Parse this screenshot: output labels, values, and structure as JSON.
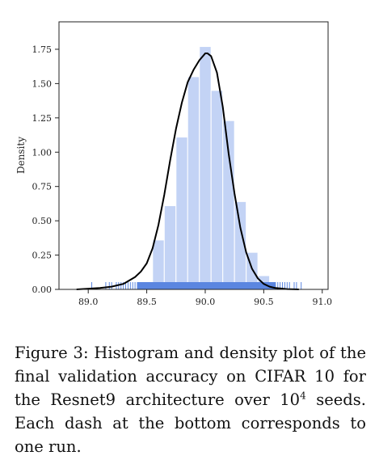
{
  "chart_data": {
    "type": "histogram",
    "ylabel": "Density",
    "xlabel": "",
    "xlim": [
      88.75,
      91.05
    ],
    "ylim": [
      0,
      1.95
    ],
    "x_ticks": [
      89.0,
      89.5,
      90.0,
      90.5,
      91.0
    ],
    "x_tick_labels": [
      "89.0",
      "89.5",
      "90.0",
      "90.5",
      "91.0"
    ],
    "y_ticks": [
      0.0,
      0.25,
      0.5,
      0.75,
      1.0,
      1.25,
      1.5,
      1.75
    ],
    "y_tick_labels": [
      "0.00",
      "0.25",
      "0.50",
      "0.75",
      "1.00",
      "1.25",
      "1.50",
      "1.75"
    ],
    "bins": [
      {
        "x0": 89.45,
        "x1": 89.55,
        "density": 0.05
      },
      {
        "x0": 89.55,
        "x1": 89.65,
        "density": 0.36
      },
      {
        "x0": 89.65,
        "x1": 89.75,
        "density": 0.61
      },
      {
        "x0": 89.75,
        "x1": 89.85,
        "density": 1.11
      },
      {
        "x0": 89.85,
        "x1": 89.95,
        "density": 1.55
      },
      {
        "x0": 89.95,
        "x1": 90.05,
        "density": 1.77
      },
      {
        "x0": 90.05,
        "x1": 90.15,
        "density": 1.45
      },
      {
        "x0": 90.15,
        "x1": 90.25,
        "density": 1.23
      },
      {
        "x0": 90.25,
        "x1": 90.35,
        "density": 0.64
      },
      {
        "x0": 90.35,
        "x1": 90.45,
        "density": 0.27
      },
      {
        "x0": 90.45,
        "x1": 90.55,
        "density": 0.1
      }
    ],
    "kde": {
      "x": [
        88.9,
        89.0,
        89.1,
        89.2,
        89.3,
        89.4,
        89.45,
        89.5,
        89.55,
        89.6,
        89.65,
        89.7,
        89.75,
        89.8,
        89.85,
        89.9,
        89.95,
        90.0,
        90.02,
        90.05,
        90.1,
        90.15,
        90.2,
        90.25,
        90.3,
        90.35,
        90.4,
        90.45,
        90.5,
        90.55,
        90.6,
        90.7,
        90.8
      ],
      "y": [
        0.0,
        0.005,
        0.01,
        0.02,
        0.04,
        0.09,
        0.13,
        0.19,
        0.3,
        0.47,
        0.69,
        0.94,
        1.17,
        1.36,
        1.51,
        1.6,
        1.67,
        1.72,
        1.72,
        1.7,
        1.58,
        1.33,
        0.99,
        0.7,
        0.45,
        0.27,
        0.15,
        0.08,
        0.04,
        0.02,
        0.01,
        0.002,
        0.0
      ]
    },
    "rug_sparse": [
      89.03,
      89.15,
      89.18,
      89.2,
      89.24,
      89.26,
      89.28,
      89.3,
      89.32,
      89.34,
      89.36,
      89.38,
      89.4,
      89.42,
      90.6,
      90.62,
      90.64,
      90.66,
      90.68,
      90.7,
      90.72,
      90.76,
      90.78,
      90.82
    ],
    "rug_dense_range": [
      89.42,
      90.6
    ],
    "colors": {
      "bar_fill": "#c3d3f5",
      "bar_edge": "#ffffff",
      "rug": "#5b86e0",
      "kde": "#000000",
      "axes": "#222222"
    }
  },
  "caption": {
    "text_before": "Figure 3:  Histogram and density plot of the final validation accuracy on CIFAR 10 for the Resnet9 architecture over 10",
    "superscript": "4",
    "text_after": " seeds. Each dash at the bottom corresponds to one run."
  }
}
